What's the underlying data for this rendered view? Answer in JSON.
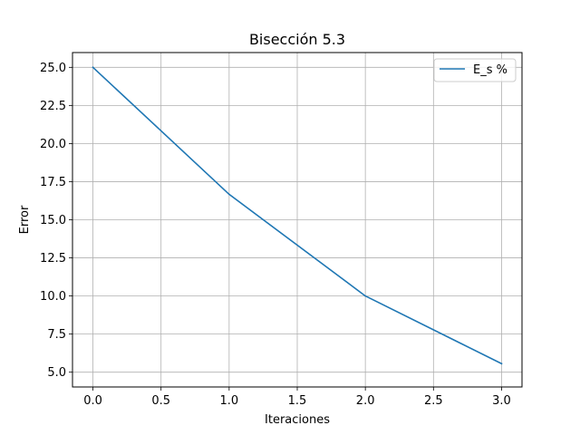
{
  "chart_data": {
    "type": "line",
    "title": "Bisección 5.3",
    "xlabel": "Iteraciones",
    "ylabel": "Error",
    "x": [
      0,
      1,
      2,
      3
    ],
    "series": [
      {
        "name": "E_s %",
        "values": [
          25.0,
          16.67,
          10.0,
          5.56
        ],
        "color": "#1f77b4"
      }
    ],
    "xlim": [
      -0.15,
      3.15
    ],
    "ylim": [
      4.03,
      25.97
    ],
    "xticks": [
      0.0,
      0.5,
      1.0,
      1.5,
      2.0,
      2.5,
      3.0
    ],
    "xtick_labels": [
      "0.0",
      "0.5",
      "1.0",
      "1.5",
      "2.0",
      "2.5",
      "3.0"
    ],
    "yticks": [
      5.0,
      7.5,
      10.0,
      12.5,
      15.0,
      17.5,
      20.0,
      22.5,
      25.0
    ],
    "ytick_labels": [
      "5.0",
      "7.5",
      "10.0",
      "12.5",
      "15.0",
      "17.5",
      "20.0",
      "22.5",
      "25.0"
    ],
    "grid": true,
    "legend_position": "top-right"
  }
}
